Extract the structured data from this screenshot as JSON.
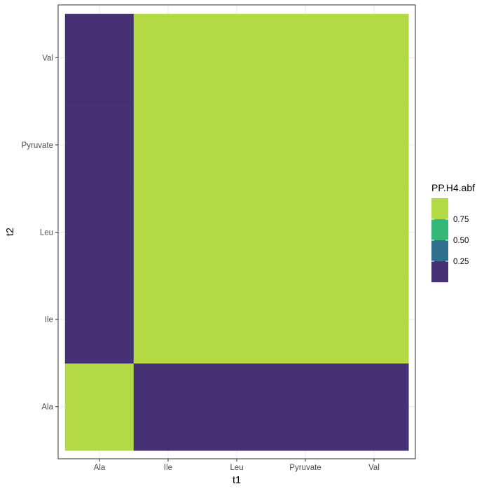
{
  "chart_data": {
    "type": "heatmap",
    "title": "",
    "xlabel": "t1",
    "ylabel": "t2",
    "x_categories": [
      "Ala",
      "Ile",
      "Leu",
      "Pyruvate",
      "Val"
    ],
    "y_categories": [
      "Ala",
      "Ile",
      "Leu",
      "Pyruvate",
      "Val"
    ],
    "cells": [
      {
        "x": "Ala",
        "y": "Ala",
        "value": 1.0
      },
      {
        "x": "Ile",
        "y": "Ala",
        "value": 0.0
      },
      {
        "x": "Leu",
        "y": "Ala",
        "value": 0.0
      },
      {
        "x": "Pyruvate",
        "y": "Ala",
        "value": 0.0
      },
      {
        "x": "Val",
        "y": "Ala",
        "value": 0.0
      },
      {
        "x": "Ala",
        "y": "Ile",
        "value": 0.0
      },
      {
        "x": "Ile",
        "y": "Ile",
        "value": 1.0
      },
      {
        "x": "Leu",
        "y": "Ile",
        "value": 1.0
      },
      {
        "x": "Pyruvate",
        "y": "Ile",
        "value": 1.0
      },
      {
        "x": "Val",
        "y": "Ile",
        "value": 1.0
      },
      {
        "x": "Ala",
        "y": "Leu",
        "value": 0.0
      },
      {
        "x": "Ile",
        "y": "Leu",
        "value": 1.0
      },
      {
        "x": "Leu",
        "y": "Leu",
        "value": 1.0
      },
      {
        "x": "Pyruvate",
        "y": "Leu",
        "value": 1.0
      },
      {
        "x": "Val",
        "y": "Leu",
        "value": 1.0
      },
      {
        "x": "Ala",
        "y": "Pyruvate",
        "value": 0.0
      },
      {
        "x": "Ile",
        "y": "Pyruvate",
        "value": 1.0
      },
      {
        "x": "Leu",
        "y": "Pyruvate",
        "value": 1.0
      },
      {
        "x": "Pyruvate",
        "y": "Pyruvate",
        "value": 1.0
      },
      {
        "x": "Val",
        "y": "Pyruvate",
        "value": 1.0
      },
      {
        "x": "Ala",
        "y": "Val",
        "value": 0.0
      },
      {
        "x": "Ile",
        "y": "Val",
        "value": 1.0
      },
      {
        "x": "Leu",
        "y": "Val",
        "value": 1.0
      },
      {
        "x": "Pyruvate",
        "y": "Val",
        "value": 1.0
      },
      {
        "x": "Val",
        "y": "Val",
        "value": 1.0
      }
    ],
    "legend": {
      "title": "PP.H4.abf",
      "placement": "right",
      "range": [
        0,
        1
      ],
      "bins": [
        {
          "from": 0.0,
          "to": 0.25,
          "color": "#453174"
        },
        {
          "from": 0.25,
          "to": 0.5,
          "color": "#31708e"
        },
        {
          "from": 0.5,
          "to": 0.75,
          "color": "#35b779"
        },
        {
          "from": 0.75,
          "to": 1.0,
          "color": "#b3da45"
        }
      ],
      "labels": [
        "0.25",
        "0.50",
        "0.75"
      ]
    },
    "grid": true
  }
}
